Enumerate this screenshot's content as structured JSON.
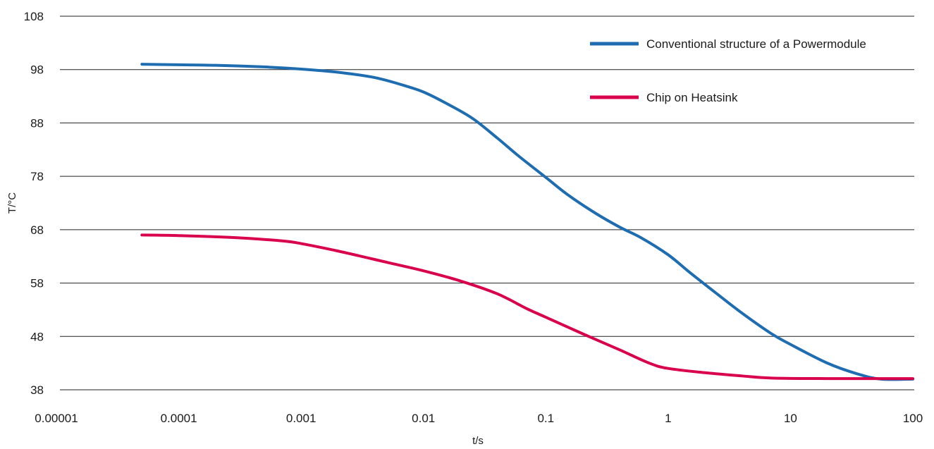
{
  "chart_data": {
    "type": "line",
    "title": "",
    "xlabel": "t/s",
    "ylabel": "T/°C",
    "x_scale": "log",
    "x_ticks": [
      1e-05,
      0.0001,
      0.001,
      0.01,
      0.1,
      1,
      10,
      100
    ],
    "x_tick_labels": [
      "0.00001",
      "0.0001",
      "0.001",
      "0.01",
      "0.1",
      "1",
      "10",
      "100"
    ],
    "y_ticks": [
      38,
      48,
      58,
      68,
      78,
      88,
      98,
      108
    ],
    "y_tick_labels": [
      "38",
      "48",
      "58",
      "68",
      "78",
      "88",
      "98",
      "108"
    ],
    "xlim": [
      1e-05,
      100
    ],
    "ylim": [
      38,
      108
    ],
    "grid": "horizontal",
    "legend_position": "top-right",
    "series": [
      {
        "name": "Conventional structure of a Powermodule",
        "color": "#1f6db1",
        "points": [
          [
            5e-05,
            99.0
          ],
          [
            0.0001,
            98.9
          ],
          [
            0.0002,
            98.8
          ],
          [
            0.0005,
            98.5
          ],
          [
            0.001,
            98.1
          ],
          [
            0.002,
            97.5
          ],
          [
            0.004,
            96.5
          ],
          [
            0.007,
            95.0
          ],
          [
            0.01,
            93.8
          ],
          [
            0.015,
            91.8
          ],
          [
            0.025,
            88.9
          ],
          [
            0.04,
            85.2
          ],
          [
            0.06,
            81.8
          ],
          [
            0.1,
            77.8
          ],
          [
            0.15,
            74.6
          ],
          [
            0.25,
            71.2
          ],
          [
            0.4,
            68.5
          ],
          [
            0.6,
            66.5
          ],
          [
            1.0,
            63.3
          ],
          [
            1.5,
            60.0
          ],
          [
            2.5,
            56.0
          ],
          [
            4.0,
            52.4
          ],
          [
            7.0,
            48.5
          ],
          [
            10,
            46.5
          ],
          [
            20,
            43.0
          ],
          [
            35,
            41.0
          ],
          [
            55,
            40.0
          ],
          [
            100,
            40.0
          ]
        ]
      },
      {
        "name": "Chip on Heatsink",
        "color": "#d9004c",
        "points": [
          [
            5e-05,
            67.0
          ],
          [
            0.0001,
            66.9
          ],
          [
            0.0003,
            66.5
          ],
          [
            0.0007,
            65.9
          ],
          [
            0.001,
            65.4
          ],
          [
            0.002,
            64.0
          ],
          [
            0.005,
            61.9
          ],
          [
            0.01,
            60.3
          ],
          [
            0.02,
            58.4
          ],
          [
            0.04,
            56.0
          ],
          [
            0.07,
            53.2
          ],
          [
            0.1,
            51.6
          ],
          [
            0.2,
            48.5
          ],
          [
            0.4,
            45.5
          ],
          [
            0.7,
            43.0
          ],
          [
            1.0,
            42.0
          ],
          [
            2.0,
            41.2
          ],
          [
            4.0,
            40.6
          ],
          [
            7.0,
            40.2
          ],
          [
            20,
            40.1
          ],
          [
            100,
            40.1
          ]
        ]
      }
    ]
  }
}
